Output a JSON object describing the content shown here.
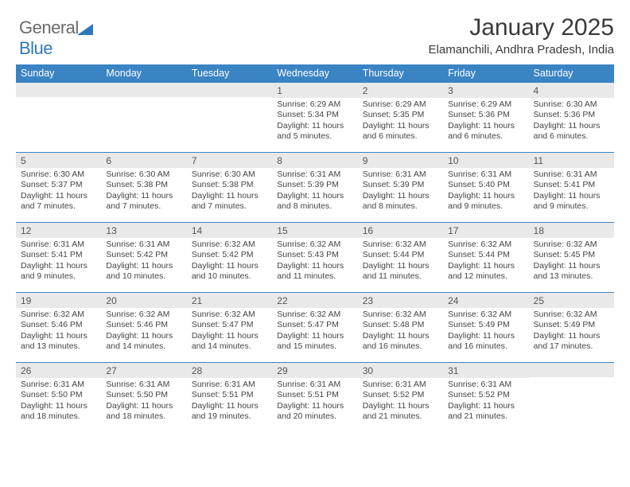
{
  "logo": {
    "text1": "General",
    "text2": "Blue"
  },
  "header": {
    "title": "January 2025",
    "location": "Elamanchili, Andhra Pradesh, India"
  },
  "colors": {
    "header_bg": "#3b84c4",
    "header_fg": "#ffffff",
    "daynum_bg": "#e9e9e9",
    "border": "#3b84c4",
    "title_color": "#3a3a3a",
    "body_text": "#444444"
  },
  "days_of_week": [
    "Sunday",
    "Monday",
    "Tuesday",
    "Wednesday",
    "Thursday",
    "Friday",
    "Saturday"
  ],
  "weeks": [
    [
      {
        "day": "",
        "sunrise": "",
        "sunset": "",
        "daylight": ""
      },
      {
        "day": "",
        "sunrise": "",
        "sunset": "",
        "daylight": ""
      },
      {
        "day": "",
        "sunrise": "",
        "sunset": "",
        "daylight": ""
      },
      {
        "day": "1",
        "sunrise": "Sunrise: 6:29 AM",
        "sunset": "Sunset: 5:34 PM",
        "daylight": "Daylight: 11 hours and 5 minutes."
      },
      {
        "day": "2",
        "sunrise": "Sunrise: 6:29 AM",
        "sunset": "Sunset: 5:35 PM",
        "daylight": "Daylight: 11 hours and 6 minutes."
      },
      {
        "day": "3",
        "sunrise": "Sunrise: 6:29 AM",
        "sunset": "Sunset: 5:36 PM",
        "daylight": "Daylight: 11 hours and 6 minutes."
      },
      {
        "day": "4",
        "sunrise": "Sunrise: 6:30 AM",
        "sunset": "Sunset: 5:36 PM",
        "daylight": "Daylight: 11 hours and 6 minutes."
      }
    ],
    [
      {
        "day": "5",
        "sunrise": "Sunrise: 6:30 AM",
        "sunset": "Sunset: 5:37 PM",
        "daylight": "Daylight: 11 hours and 7 minutes."
      },
      {
        "day": "6",
        "sunrise": "Sunrise: 6:30 AM",
        "sunset": "Sunset: 5:38 PM",
        "daylight": "Daylight: 11 hours and 7 minutes."
      },
      {
        "day": "7",
        "sunrise": "Sunrise: 6:30 AM",
        "sunset": "Sunset: 5:38 PM",
        "daylight": "Daylight: 11 hours and 7 minutes."
      },
      {
        "day": "8",
        "sunrise": "Sunrise: 6:31 AM",
        "sunset": "Sunset: 5:39 PM",
        "daylight": "Daylight: 11 hours and 8 minutes."
      },
      {
        "day": "9",
        "sunrise": "Sunrise: 6:31 AM",
        "sunset": "Sunset: 5:39 PM",
        "daylight": "Daylight: 11 hours and 8 minutes."
      },
      {
        "day": "10",
        "sunrise": "Sunrise: 6:31 AM",
        "sunset": "Sunset: 5:40 PM",
        "daylight": "Daylight: 11 hours and 9 minutes."
      },
      {
        "day": "11",
        "sunrise": "Sunrise: 6:31 AM",
        "sunset": "Sunset: 5:41 PM",
        "daylight": "Daylight: 11 hours and 9 minutes."
      }
    ],
    [
      {
        "day": "12",
        "sunrise": "Sunrise: 6:31 AM",
        "sunset": "Sunset: 5:41 PM",
        "daylight": "Daylight: 11 hours and 9 minutes."
      },
      {
        "day": "13",
        "sunrise": "Sunrise: 6:31 AM",
        "sunset": "Sunset: 5:42 PM",
        "daylight": "Daylight: 11 hours and 10 minutes."
      },
      {
        "day": "14",
        "sunrise": "Sunrise: 6:32 AM",
        "sunset": "Sunset: 5:42 PM",
        "daylight": "Daylight: 11 hours and 10 minutes."
      },
      {
        "day": "15",
        "sunrise": "Sunrise: 6:32 AM",
        "sunset": "Sunset: 5:43 PM",
        "daylight": "Daylight: 11 hours and 11 minutes."
      },
      {
        "day": "16",
        "sunrise": "Sunrise: 6:32 AM",
        "sunset": "Sunset: 5:44 PM",
        "daylight": "Daylight: 11 hours and 11 minutes."
      },
      {
        "day": "17",
        "sunrise": "Sunrise: 6:32 AM",
        "sunset": "Sunset: 5:44 PM",
        "daylight": "Daylight: 11 hours and 12 minutes."
      },
      {
        "day": "18",
        "sunrise": "Sunrise: 6:32 AM",
        "sunset": "Sunset: 5:45 PM",
        "daylight": "Daylight: 11 hours and 13 minutes."
      }
    ],
    [
      {
        "day": "19",
        "sunrise": "Sunrise: 6:32 AM",
        "sunset": "Sunset: 5:46 PM",
        "daylight": "Daylight: 11 hours and 13 minutes."
      },
      {
        "day": "20",
        "sunrise": "Sunrise: 6:32 AM",
        "sunset": "Sunset: 5:46 PM",
        "daylight": "Daylight: 11 hours and 14 minutes."
      },
      {
        "day": "21",
        "sunrise": "Sunrise: 6:32 AM",
        "sunset": "Sunset: 5:47 PM",
        "daylight": "Daylight: 11 hours and 14 minutes."
      },
      {
        "day": "22",
        "sunrise": "Sunrise: 6:32 AM",
        "sunset": "Sunset: 5:47 PM",
        "daylight": "Daylight: 11 hours and 15 minutes."
      },
      {
        "day": "23",
        "sunrise": "Sunrise: 6:32 AM",
        "sunset": "Sunset: 5:48 PM",
        "daylight": "Daylight: 11 hours and 16 minutes."
      },
      {
        "day": "24",
        "sunrise": "Sunrise: 6:32 AM",
        "sunset": "Sunset: 5:49 PM",
        "daylight": "Daylight: 11 hours and 16 minutes."
      },
      {
        "day": "25",
        "sunrise": "Sunrise: 6:32 AM",
        "sunset": "Sunset: 5:49 PM",
        "daylight": "Daylight: 11 hours and 17 minutes."
      }
    ],
    [
      {
        "day": "26",
        "sunrise": "Sunrise: 6:31 AM",
        "sunset": "Sunset: 5:50 PM",
        "daylight": "Daylight: 11 hours and 18 minutes."
      },
      {
        "day": "27",
        "sunrise": "Sunrise: 6:31 AM",
        "sunset": "Sunset: 5:50 PM",
        "daylight": "Daylight: 11 hours and 18 minutes."
      },
      {
        "day": "28",
        "sunrise": "Sunrise: 6:31 AM",
        "sunset": "Sunset: 5:51 PM",
        "daylight": "Daylight: 11 hours and 19 minutes."
      },
      {
        "day": "29",
        "sunrise": "Sunrise: 6:31 AM",
        "sunset": "Sunset: 5:51 PM",
        "daylight": "Daylight: 11 hours and 20 minutes."
      },
      {
        "day": "30",
        "sunrise": "Sunrise: 6:31 AM",
        "sunset": "Sunset: 5:52 PM",
        "daylight": "Daylight: 11 hours and 21 minutes."
      },
      {
        "day": "31",
        "sunrise": "Sunrise: 6:31 AM",
        "sunset": "Sunset: 5:52 PM",
        "daylight": "Daylight: 11 hours and 21 minutes."
      },
      {
        "day": "",
        "sunrise": "",
        "sunset": "",
        "daylight": ""
      }
    ]
  ]
}
